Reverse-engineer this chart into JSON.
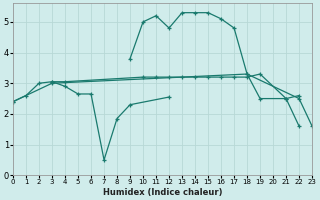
{
  "xlabel": "Humidex (Indice chaleur)",
  "color": "#1a7a6e",
  "bg_color": "#d0eceb",
  "grid_color": "#b8d8d6",
  "ylim": [
    0,
    5.6
  ],
  "xlim": [
    0,
    23
  ],
  "yticks": [
    0,
    1,
    2,
    3,
    4,
    5
  ],
  "xticks": [
    0,
    1,
    2,
    3,
    4,
    5,
    6,
    7,
    8,
    9,
    10,
    11,
    12,
    13,
    14,
    15,
    16,
    17,
    18,
    19,
    20,
    21,
    22,
    23
  ],
  "lineA_x": [
    0,
    1,
    2,
    3,
    4,
    10,
    11,
    12,
    13,
    14,
    15,
    16,
    17,
    18,
    19,
    21,
    22
  ],
  "lineA_y": [
    2.4,
    2.6,
    3.0,
    3.05,
    3.05,
    3.2,
    3.2,
    3.2,
    3.2,
    3.2,
    3.2,
    3.2,
    3.2,
    3.2,
    3.3,
    2.5,
    2.6
  ],
  "lineB_x": [
    0,
    3,
    18,
    22,
    23
  ],
  "lineB_y": [
    2.4,
    3.0,
    3.3,
    2.5,
    1.6
  ],
  "lineC_x": [
    3,
    4,
    5,
    6,
    7,
    8,
    9,
    12
  ],
  "lineC_y": [
    3.05,
    2.9,
    2.65,
    2.65,
    0.5,
    1.85,
    2.3,
    2.55
  ],
  "lineD_x": [
    9,
    10,
    11,
    12,
    13,
    14,
    15,
    16,
    17,
    18,
    19,
    21,
    22
  ],
  "lineD_y": [
    3.8,
    5.0,
    5.2,
    4.8,
    5.3,
    5.3,
    5.3,
    5.1,
    4.8,
    3.3,
    2.5,
    2.5,
    1.6
  ]
}
